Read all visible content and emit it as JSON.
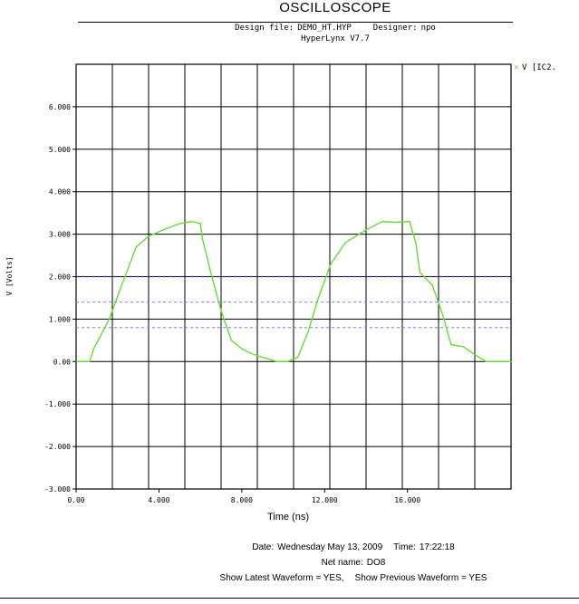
{
  "header": {
    "title": "OSCILLOSCOPE",
    "design_file_label": "Design file:",
    "design_file": "DEMO_HT.HYP",
    "designer_label": "Designer:",
    "designer": "npo",
    "software": "HyperLynx V7.7"
  },
  "footer": {
    "date_label": "Date:",
    "date": "Wednesday May 13, 2009",
    "time_label": "Time:",
    "time": "17:22:18",
    "net_label": "Net name:",
    "net": "DO8",
    "latest": "Show Latest Waveform = YES,",
    "previous": "Show Previous Waveform = YES"
  },
  "colors": {
    "waveform": "#66dd33",
    "threshold_dark": "#2d2d80",
    "threshold_light": "#8080ee",
    "grid": "#000000",
    "background": "#ffffff"
  },
  "chart_data": {
    "type": "line",
    "xlabel": "Time (ns)",
    "ylabel": "V [Volts]",
    "xlim": [
      0,
      21
    ],
    "ylim": [
      -3.0,
      7.0
    ],
    "x_ticks": [
      0,
      4,
      8,
      12,
      16
    ],
    "x_tick_labels": [
      "0.00",
      "4.000",
      "8.000",
      "12.000",
      "16.000"
    ],
    "y_ticks": [
      -3,
      -2,
      -1,
      0,
      1,
      2,
      3,
      4,
      5,
      6
    ],
    "y_tick_labels": [
      "-3.000",
      "-2.000",
      "-1.000",
      "0.00",
      "1.000",
      "2.000",
      "3.000",
      "4.000",
      "5.000",
      "6.000"
    ],
    "grid": true,
    "legend_placement": "top-right",
    "series": [
      {
        "name": "V [IC2.",
        "x": [
          0,
          0.65,
          0.85,
          1.6,
          2.2,
          2.9,
          3.5,
          4.2,
          5.0,
          5.6,
          6.0,
          6.1,
          6.5,
          7.0,
          7.5,
          8.0,
          8.4,
          9.0,
          9.7,
          10.2,
          10.7,
          11.2,
          11.7,
          12.3,
          13.0,
          14.0,
          14.8,
          15.4,
          16.1,
          16.4,
          16.6,
          17.2,
          17.7,
          18.1,
          18.7,
          19.3,
          19.8,
          20.3,
          21.0
        ],
        "y": [
          0.0,
          0.0,
          0.3,
          1.0,
          1.8,
          2.7,
          2.95,
          3.1,
          3.25,
          3.3,
          3.25,
          2.9,
          2.1,
          1.2,
          0.5,
          0.3,
          0.2,
          0.1,
          0.0,
          0.0,
          0.1,
          0.7,
          1.5,
          2.3,
          2.8,
          3.1,
          3.3,
          3.28,
          3.3,
          2.8,
          2.1,
          1.8,
          1.1,
          0.4,
          0.35,
          0.15,
          0.0,
          0.0,
          0.0
        ]
      }
    ],
    "threshold_lines": [
      {
        "y": 2.0,
        "style": "dark-dashed"
      },
      {
        "y": 1.4,
        "style": "light-dashed"
      },
      {
        "y": 0.8,
        "style": "light-dashed"
      }
    ]
  }
}
